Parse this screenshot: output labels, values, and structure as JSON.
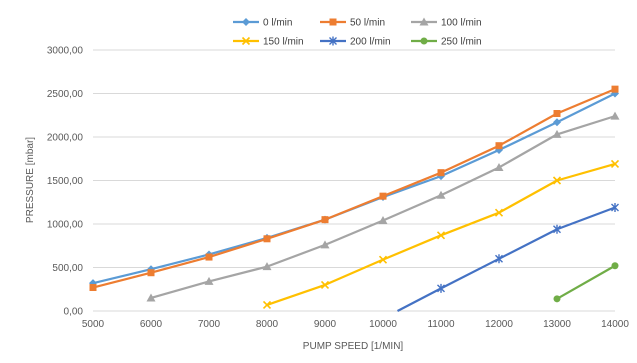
{
  "chart_data": {
    "type": "line",
    "title": "",
    "xlabel": "PUMP SPEED [1/MIN]",
    "ylabel": "PRESSURE [mbar]",
    "x_ticks": [
      "5000",
      "6000",
      "7000",
      "8000",
      "9000",
      "10000",
      "11000",
      "12000",
      "13000",
      "14000"
    ],
    "y_ticks": [
      "0,00",
      "500,00",
      "1000,00",
      "1500,00",
      "2000,00",
      "2500,00",
      "3000,00"
    ],
    "xlim": [
      5000,
      14000
    ],
    "ylim": [
      0,
      3000
    ],
    "grid": "horizontal",
    "legend": "top",
    "series": [
      {
        "name": "0 l/min",
        "color": "#5B9BD5",
        "marker": "diamond",
        "points": [
          [
            5000,
            320
          ],
          [
            6000,
            480
          ],
          [
            7000,
            650
          ],
          [
            8000,
            840
          ],
          [
            9000,
            1050
          ],
          [
            10000,
            1310
          ],
          [
            11000,
            1550
          ],
          [
            12000,
            1850
          ],
          [
            13000,
            2170
          ],
          [
            14000,
            2500
          ]
        ]
      },
      {
        "name": "50 l/min",
        "color": "#ED7D31",
        "marker": "square",
        "points": [
          [
            5000,
            270
          ],
          [
            6000,
            440
          ],
          [
            7000,
            620
          ],
          [
            8000,
            830
          ],
          [
            9000,
            1050
          ],
          [
            10000,
            1320
          ],
          [
            11000,
            1590
          ],
          [
            12000,
            1900
          ],
          [
            13000,
            2270
          ],
          [
            14000,
            2550
          ]
        ]
      },
      {
        "name": "100 l/min",
        "color": "#A5A5A5",
        "marker": "triangle",
        "points": [
          [
            6000,
            150
          ],
          [
            7000,
            340
          ],
          [
            8000,
            510
          ],
          [
            9000,
            760
          ],
          [
            10000,
            1040
          ],
          [
            11000,
            1330
          ],
          [
            12000,
            1650
          ],
          [
            13000,
            2030
          ],
          [
            14000,
            2240
          ]
        ]
      },
      {
        "name": "150 l/min",
        "color": "#FFC000",
        "marker": "x",
        "points": [
          [
            8000,
            70
          ],
          [
            9000,
            300
          ],
          [
            10000,
            590
          ],
          [
            11000,
            870
          ],
          [
            12000,
            1130
          ],
          [
            13000,
            1500
          ],
          [
            14000,
            1690
          ]
        ]
      },
      {
        "name": "200 l/min",
        "color": "#4472C4",
        "marker": "star",
        "points": [
          [
            10250,
            0
          ],
          [
            11000,
            260
          ],
          [
            12000,
            600
          ],
          [
            13000,
            940
          ],
          [
            14000,
            1190
          ]
        ]
      },
      {
        "name": "250 l/min",
        "color": "#70AD47",
        "marker": "circle",
        "points": [
          [
            13000,
            140
          ],
          [
            14000,
            520
          ]
        ]
      }
    ]
  }
}
